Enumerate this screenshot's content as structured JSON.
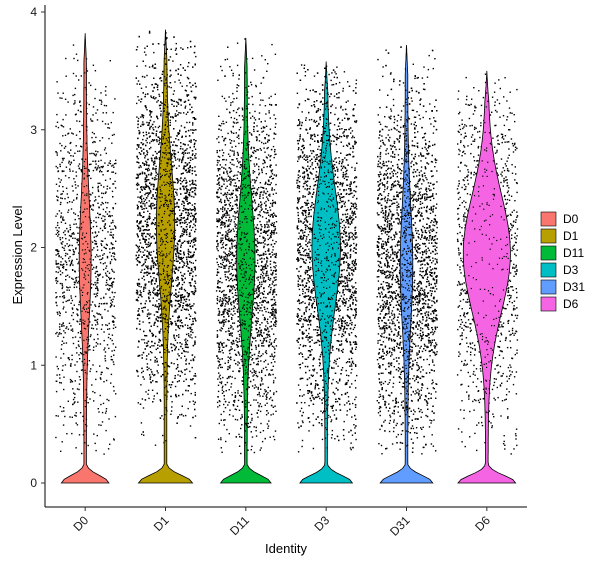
{
  "chart_data": {
    "type": "violin",
    "xlabel": "Identity",
    "ylabel": "Expression Level",
    "ylim": [
      0,
      4
    ],
    "yticks": [
      "0",
      "1",
      "2",
      "3",
      "4"
    ],
    "categories": [
      "D0",
      "D1",
      "D11",
      "D3",
      "D31",
      "D6"
    ],
    "legend_position": "right",
    "grid": false,
    "point_color": "#000000",
    "series": [
      {
        "name": "D0",
        "color": "#F8766D",
        "max": 3.82,
        "zero_fraction_width": 0.66,
        "body_peak": 1.9,
        "body_width": 0.13,
        "cells": 1200
      },
      {
        "name": "D1",
        "color": "#B79F00",
        "max": 3.85,
        "zero_fraction_width": 0.75,
        "body_peak": 2.2,
        "body_width": 0.22,
        "cells": 3200
      },
      {
        "name": "D11",
        "color": "#00BA38",
        "max": 3.78,
        "zero_fraction_width": 0.7,
        "body_peak": 1.9,
        "body_width": 0.22,
        "cells": 2500
      },
      {
        "name": "D3",
        "color": "#00BFC4",
        "max": 3.58,
        "zero_fraction_width": 0.73,
        "body_peak": 2.0,
        "body_width": 0.36,
        "cells": 3000
      },
      {
        "name": "D31",
        "color": "#619CFF",
        "max": 3.72,
        "zero_fraction_width": 0.73,
        "body_peak": 1.85,
        "body_width": 0.14,
        "cells": 3000
      },
      {
        "name": "D6",
        "color": "#F564E3",
        "max": 3.5,
        "zero_fraction_width": 0.8,
        "body_peak": 1.95,
        "body_width": 0.62,
        "cells": 1200
      }
    ]
  }
}
